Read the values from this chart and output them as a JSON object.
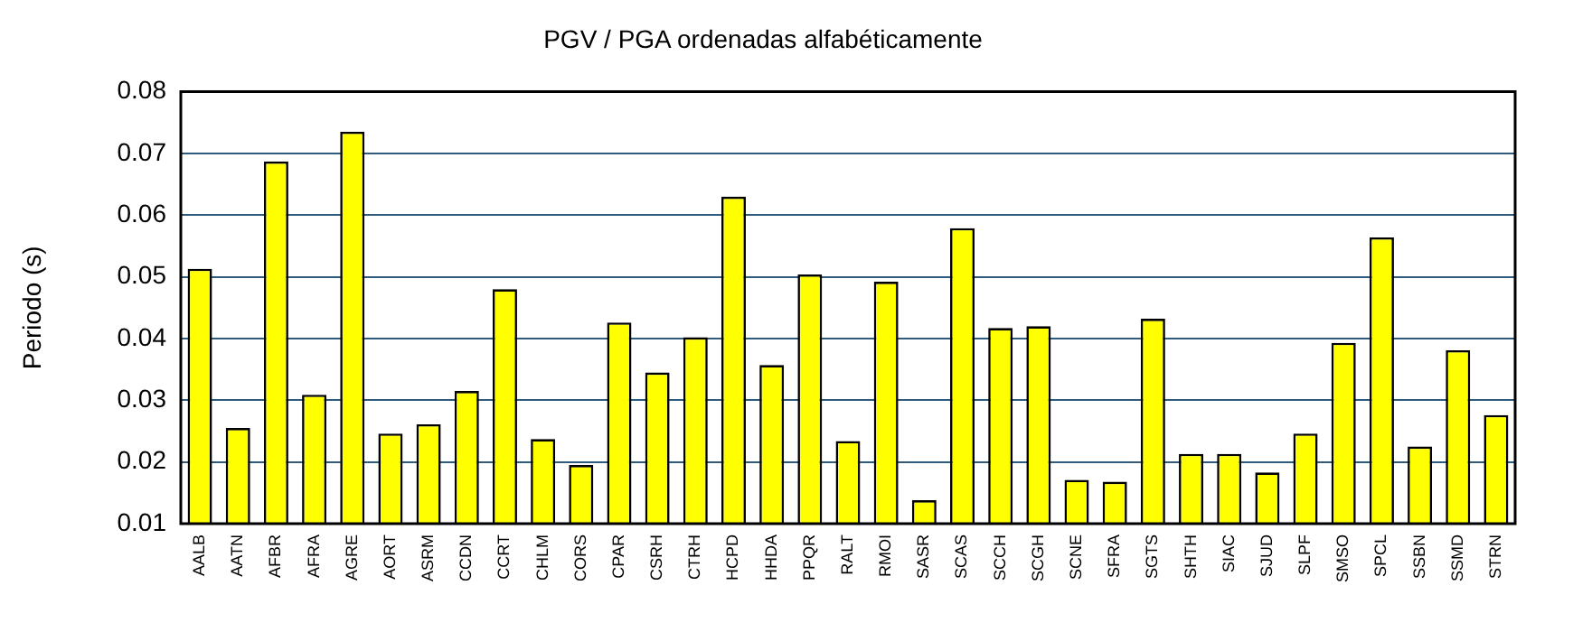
{
  "chart_data": {
    "type": "bar",
    "title": "PGV / PGA ordenadas alfabéticamente",
    "ylabel": "Periodo (s)",
    "categories": [
      "AALB",
      "AATN",
      "AFBR",
      "AFRA",
      "AGRE",
      "AORT",
      "ASRM",
      "CCDN",
      "CCRT",
      "CHLM",
      "CORS",
      "CPAR",
      "CSRH",
      "CTRH",
      "HCPD",
      "HHDA",
      "PPQR",
      "RALT",
      "RMOI",
      "SASR",
      "SCAS",
      "SCCH",
      "SCGH",
      "SCNE",
      "SFRA",
      "SGTS",
      "SHTH",
      "SIAC",
      "SJUD",
      "SLPF",
      "SMSO",
      "SPCL",
      "SSBN",
      "SSMD",
      "STRN"
    ],
    "values": [
      0.0513,
      0.0255,
      0.0687,
      0.0309,
      0.0735,
      0.0246,
      0.0261,
      0.0315,
      0.048,
      0.0237,
      0.0195,
      0.0426,
      0.0345,
      0.0402,
      0.063,
      0.0357,
      0.0504,
      0.0234,
      0.0492,
      0.0138,
      0.0579,
      0.0417,
      0.042,
      0.0171,
      0.0168,
      0.0432,
      0.0213,
      0.0213,
      0.0183,
      0.0246,
      0.0393,
      0.0564,
      0.0225,
      0.0381,
      0.0276
    ],
    "color": "#ffff00",
    "ylim": [
      0.01,
      0.08
    ],
    "yticks": [
      0.01,
      0.02,
      0.03,
      0.04,
      0.05,
      0.06,
      0.07,
      0.08
    ],
    "grid": "y",
    "legend": false
  }
}
